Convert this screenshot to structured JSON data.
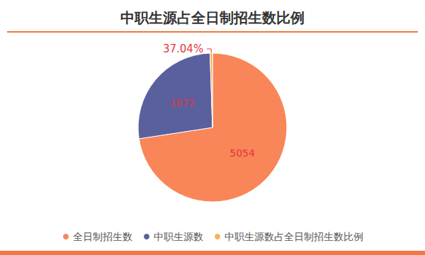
{
  "chart_data": {
    "type": "pie",
    "title": "中职生源占全日制招生数比例",
    "categories": [
      "全日制招生数",
      "中职生源数",
      "中职生源数占全日制招生数比例"
    ],
    "values": [
      5054,
      1872,
      37.04
    ],
    "value_labels": [
      "5054",
      "1872",
      "37.04%"
    ],
    "colors": [
      "#f98658",
      "#5a5f9e",
      "#f6b25e"
    ],
    "data_labels": true,
    "legend": "bottom"
  }
}
